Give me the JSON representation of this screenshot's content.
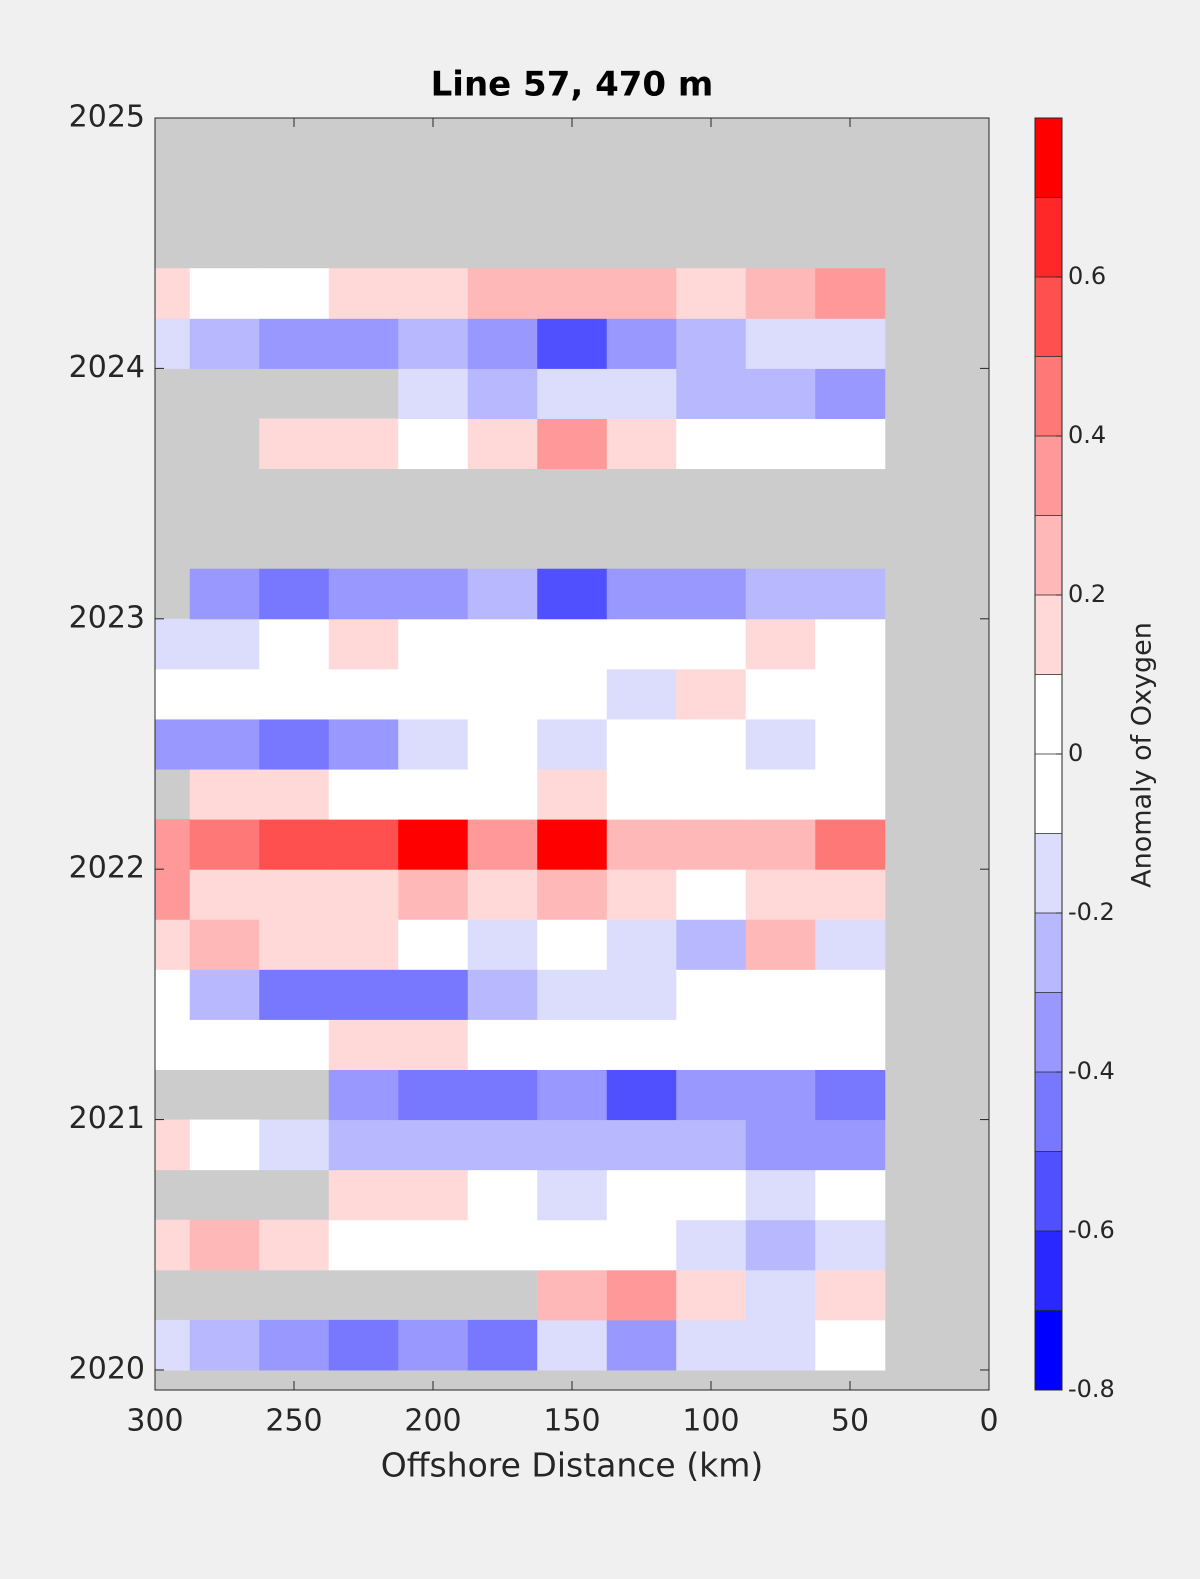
{
  "chart_data": {
    "type": "contour",
    "title": "Line 57, 470 m",
    "xlabel": "Offshore Distance (km)",
    "colorbar_label": "Anomaly of Oxygen",
    "x": [
      300,
      275,
      250,
      225,
      200,
      175,
      150,
      125,
      100,
      75,
      50
    ],
    "y": [
      2020.1,
      2020.3,
      2020.5,
      2020.7,
      2020.9,
      2021.1,
      2021.3,
      2021.5,
      2021.7,
      2021.9,
      2022.1,
      2022.3,
      2022.5,
      2022.7,
      2022.9,
      2023.1,
      2023.3,
      2023.5,
      2023.7,
      2023.9,
      2024.1,
      2024.3
    ],
    "z": [
      [
        -0.1,
        -0.2,
        -0.3,
        -0.4,
        -0.3,
        -0.4,
        -0.1,
        -0.3,
        -0.1,
        -0.1,
        0
      ],
      [
        null,
        null,
        null,
        null,
        null,
        null,
        0.2,
        0.3,
        0.1,
        -0.1,
        0.1
      ],
      [
        0.1,
        0.2,
        0.1,
        0,
        0,
        0,
        0,
        0,
        -0.1,
        -0.2,
        -0.1
      ],
      [
        null,
        null,
        null,
        0.1,
        0.1,
        0,
        -0.1,
        0,
        0,
        -0.1,
        0
      ],
      [
        0.1,
        0,
        -0.1,
        -0.2,
        -0.2,
        -0.2,
        -0.2,
        -0.2,
        -0.2,
        -0.3,
        -0.3
      ],
      [
        null,
        null,
        null,
        -0.3,
        -0.4,
        -0.4,
        -0.3,
        -0.5,
        -0.3,
        -0.3,
        -0.4
      ],
      [
        0,
        0,
        0,
        0.1,
        0.1,
        0,
        0,
        0,
        0,
        0,
        0
      ],
      [
        0,
        -0.2,
        -0.4,
        -0.4,
        -0.4,
        -0.2,
        -0.1,
        -0.1,
        0,
        0,
        0
      ],
      [
        0.1,
        0.2,
        0.1,
        0.1,
        0,
        -0.1,
        0,
        -0.1,
        -0.2,
        0.2,
        -0.1
      ],
      [
        0.3,
        0.1,
        0.1,
        0.1,
        0.2,
        0.1,
        0.2,
        0.1,
        0,
        0.1,
        0.1
      ],
      [
        0.3,
        0.4,
        0.5,
        0.5,
        0.7,
        0.3,
        0.7,
        0.2,
        0.2,
        0.2,
        0.4
      ],
      [
        null,
        0.1,
        0.1,
        0,
        0,
        0,
        0.1,
        0,
        0,
        0,
        0
      ],
      [
        -0.3,
        -0.3,
        -0.4,
        -0.3,
        -0.1,
        0,
        -0.1,
        0,
        0,
        -0.1,
        0
      ],
      [
        0,
        0,
        0,
        0,
        0,
        0,
        0,
        -0.1,
        0.1,
        0,
        0
      ],
      [
        -0.1,
        -0.1,
        0,
        0.1,
        0,
        0,
        0,
        0,
        0,
        0.1,
        0
      ],
      [
        null,
        -0.3,
        -0.4,
        -0.3,
        -0.3,
        -0.2,
        -0.5,
        -0.3,
        -0.3,
        -0.2,
        -0.2
      ],
      [
        null,
        null,
        null,
        null,
        null,
        null,
        null,
        null,
        null,
        null,
        null
      ],
      [
        null,
        null,
        null,
        null,
        null,
        null,
        null,
        null,
        null,
        null,
        null
      ],
      [
        null,
        null,
        0.1,
        0.1,
        0,
        0.1,
        0.3,
        0.1,
        0,
        0,
        0
      ],
      [
        null,
        null,
        null,
        null,
        -0.1,
        -0.2,
        -0.1,
        -0.1,
        -0.2,
        -0.2,
        -0.3
      ],
      [
        -0.1,
        -0.2,
        -0.3,
        -0.3,
        -0.2,
        -0.3,
        -0.5,
        -0.3,
        -0.2,
        -0.1,
        -0.1
      ],
      [
        0.1,
        0,
        0,
        0.1,
        0.1,
        0.2,
        0.2,
        0.2,
        0.1,
        0.2,
        0.3
      ]
    ],
    "xlim": [
      300,
      0
    ],
    "xticks": [
      300,
      250,
      200,
      150,
      100,
      50,
      0
    ],
    "ylim": [
      2019.92,
      2025
    ],
    "yticks": [
      2020,
      2021,
      2022,
      2023,
      2024,
      2025
    ],
    "levels": [
      -0.8,
      -0.7,
      -0.6,
      -0.5,
      -0.4,
      -0.3,
      -0.2,
      -0.1,
      0,
      0.1,
      0.2,
      0.3,
      0.4,
      0.5,
      0.6,
      0.7,
      0.8
    ],
    "colors": [
      "#0000ff",
      "#2828ff",
      "#5050ff",
      "#7878ff",
      "#9898ff",
      "#b8b8ff",
      "#dcdcfc",
      "#ffffff",
      "#ffffff",
      "#ffd8d8",
      "#ffb8b8",
      "#ff9898",
      "#ff7878",
      "#ff5050",
      "#ff2828",
      "#ff0000"
    ],
    "cticks": [
      -0.8,
      -0.6,
      -0.4,
      -0.2,
      0,
      0.2,
      0.4,
      0.6
    ],
    "missing_color": "#cccccc"
  }
}
